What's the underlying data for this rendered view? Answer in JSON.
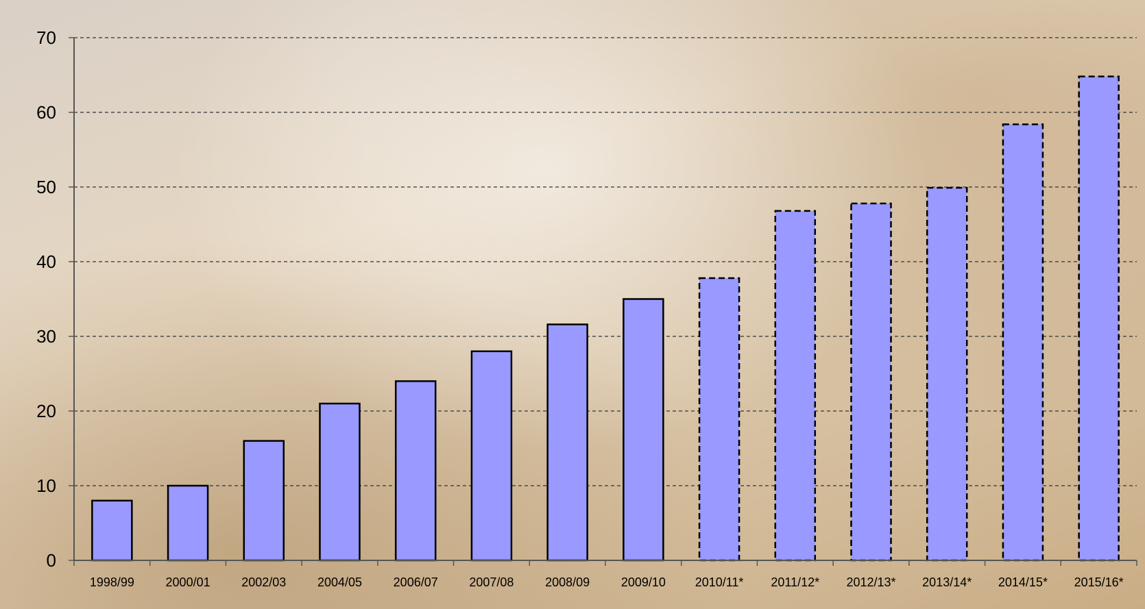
{
  "chart_data": {
    "type": "bar",
    "title": "",
    "xlabel": "",
    "ylabel": "",
    "ylim": [
      0,
      70
    ],
    "yticks": [
      0,
      10,
      20,
      30,
      40,
      50,
      60,
      70
    ],
    "grid": "horizontal-dashed",
    "categories": [
      "1998/99",
      "2000/01",
      "2002/03",
      "2004/05",
      "2006/07",
      "2007/08",
      "2008/09",
      "2009/10",
      "2010/11*",
      "2011/12*",
      "2012/13*",
      "2013/14*",
      "2014/15*",
      "2015/16*"
    ],
    "values": [
      8,
      10,
      16,
      21,
      24,
      28,
      31.6,
      35,
      37.8,
      46.8,
      47.8,
      49.9,
      58.4,
      64.8
    ],
    "forecast": [
      false,
      false,
      false,
      false,
      false,
      false,
      false,
      false,
      true,
      true,
      true,
      true,
      true,
      true
    ],
    "bar_color": "#9999ff",
    "edge_color": "#000000"
  }
}
